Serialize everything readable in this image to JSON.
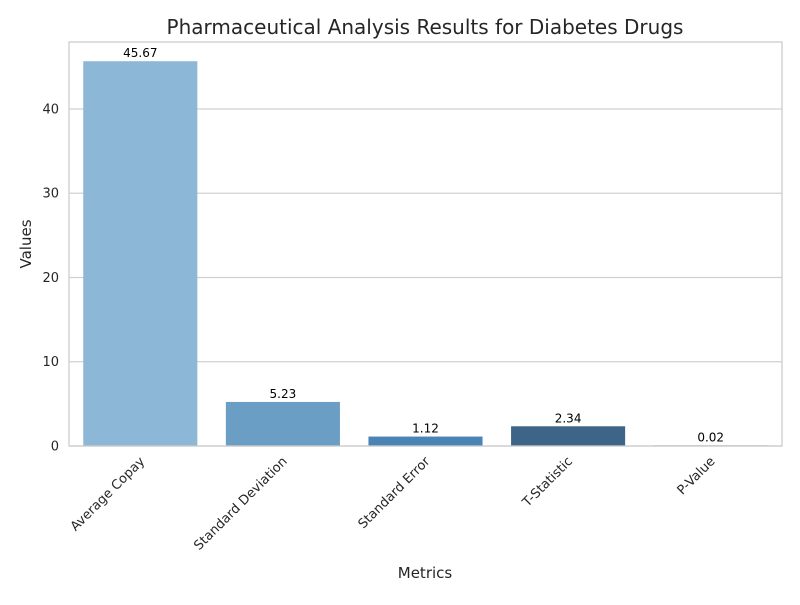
{
  "chart_data": {
    "type": "bar",
    "title": "Pharmaceutical Analysis Results for Diabetes Drugs",
    "xlabel": "Metrics",
    "ylabel": "Values",
    "categories": [
      "Average Copay",
      "Standard Deviation",
      "Standard Error",
      "T-Statistic",
      "P-Value"
    ],
    "values": [
      45.67,
      5.23,
      1.12,
      2.34,
      0.02
    ],
    "value_labels": [
      "45.67",
      "5.23",
      "1.12",
      "2.34",
      "0.02"
    ],
    "ylim": [
      0,
      47.95
    ],
    "yticks": [
      0,
      10,
      20,
      30,
      40
    ],
    "ytick_labels": [
      "0",
      "10",
      "20",
      "30",
      "40"
    ],
    "colors": [
      "#8db7d6",
      "#6a9ec4",
      "#4a84b5",
      "#3e6587",
      "#2a4a63"
    ],
    "grid": "horizontal",
    "legend": "none"
  }
}
